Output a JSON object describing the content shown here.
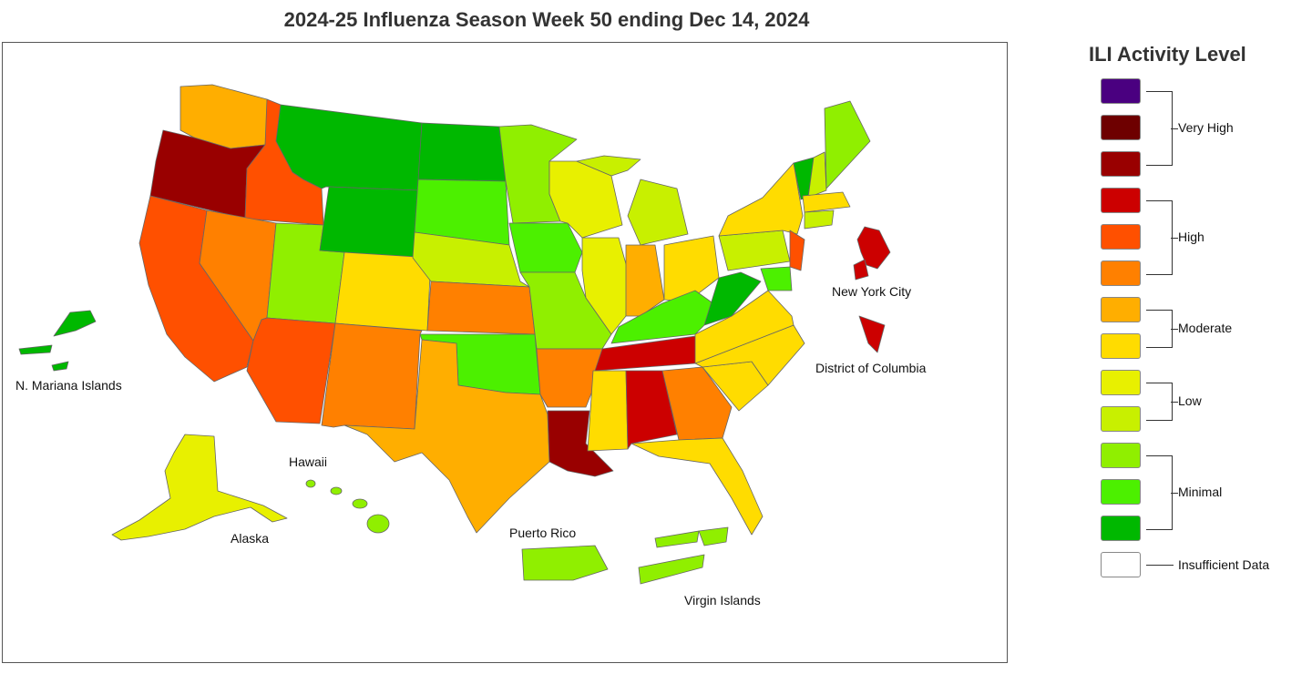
{
  "title": "2024-25 Influenza Season Week 50 ending Dec 14, 2024",
  "legend": {
    "title": "ILI Activity Level",
    "levels": [
      {
        "color": "#4a0080"
      },
      {
        "color": "#6e0000"
      },
      {
        "color": "#990000"
      },
      {
        "color": "#cc0000"
      },
      {
        "color": "#ff5000"
      },
      {
        "color": "#ff8000"
      },
      {
        "color": "#ffae00"
      },
      {
        "color": "#ffdc00"
      },
      {
        "color": "#e8f000"
      },
      {
        "color": "#c8f000"
      },
      {
        "color": "#90ef00"
      },
      {
        "color": "#4cf000"
      },
      {
        "color": "#00b800"
      },
      {
        "color": "#ffffff"
      }
    ],
    "groups": [
      "Very High",
      "High",
      "Moderate",
      "Low",
      "Minimal",
      "Insufficient Data"
    ]
  },
  "labels": {
    "nmi": "N. Mariana Islands",
    "hawaii": "Hawaii",
    "alaska": "Alaska",
    "puerto_rico": "Puerto Rico",
    "virgin_islands": "Virgin Islands",
    "nyc": "New York City",
    "dc": "District of Columbia"
  }
}
